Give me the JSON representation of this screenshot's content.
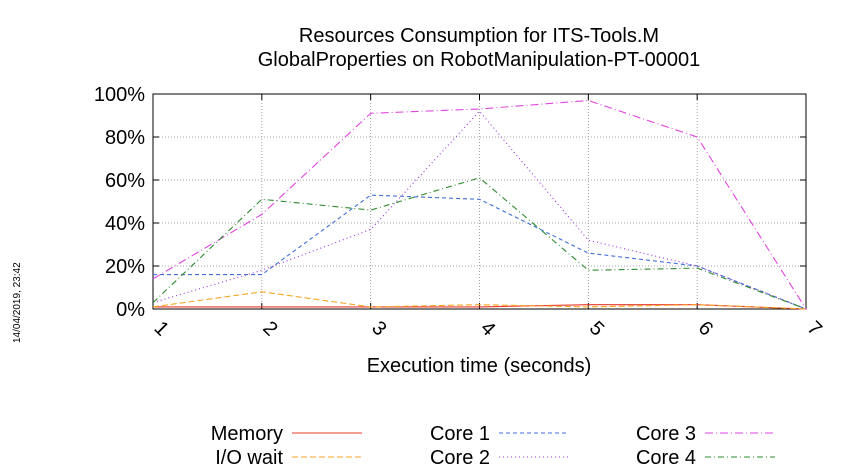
{
  "chart_data": {
    "type": "line",
    "title": [
      "Resources Consumption for ITS-Tools.M",
      "GlobalProperties on RobotManipulation-PT-00001"
    ],
    "xlabel": "Execution time (seconds)",
    "ylabel": "",
    "x": [
      1,
      2,
      3,
      4,
      5,
      6,
      7
    ],
    "xlim": [
      1,
      7
    ],
    "ylim": [
      0,
      100
    ],
    "x_ticks": [
      "1",
      "2",
      "3",
      "4",
      "5",
      "6",
      "7"
    ],
    "y_ticks": [
      "0%",
      "20%",
      "40%",
      "60%",
      "80%",
      "100%"
    ],
    "grid": true,
    "legend_position": "bottom",
    "series": [
      {
        "name": "Memory",
        "color": "#e8392c",
        "dash": "",
        "values": [
          1,
          1,
          1,
          1,
          2,
          2,
          0
        ]
      },
      {
        "name": "I/O wait",
        "color": "#f5a623",
        "dash": "6 3",
        "values": [
          1,
          8,
          1,
          2,
          1,
          2,
          0
        ]
      },
      {
        "name": "Core 1",
        "color": "#3f6fd8",
        "dash": "4 3",
        "values": [
          16,
          16,
          53,
          51,
          26,
          20,
          0
        ]
      },
      {
        "name": "Core 2",
        "color": "#9b30e0",
        "dash": "1 3",
        "values": [
          3,
          18,
          37,
          92,
          32,
          20,
          0
        ]
      },
      {
        "name": "Core 3",
        "color": "#e246e2",
        "dash": "8 3 1 3",
        "values": [
          14,
          44,
          91,
          93,
          97,
          80,
          0
        ]
      },
      {
        "name": "Core 4",
        "color": "#2e8b2e",
        "dash": "6 3 1 3",
        "values": [
          3,
          51,
          46,
          61,
          18,
          19,
          0
        ]
      }
    ]
  },
  "timestamp": "14/04/2019, 23:42"
}
